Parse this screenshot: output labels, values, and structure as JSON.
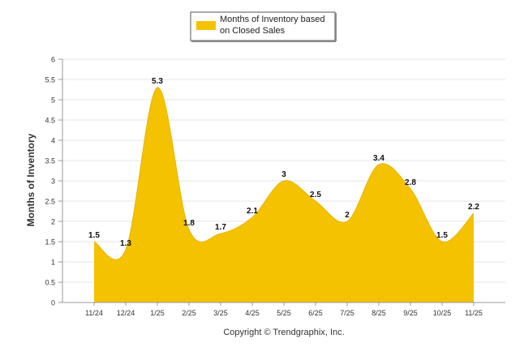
{
  "chart_data": {
    "type": "area",
    "categories": [
      "11/24",
      "12/24",
      "1/25",
      "2/25",
      "3/25",
      "4/25",
      "5/25",
      "6/25",
      "7/25",
      "8/25",
      "9/25",
      "10/25",
      "11/25"
    ],
    "series": [
      {
        "name": "Months of Inventory based on Closed Sales",
        "values": [
          1.5,
          1.3,
          5.3,
          1.8,
          1.7,
          2.1,
          3,
          2.5,
          2,
          3.4,
          2.8,
          1.5,
          2.2
        ],
        "labels": [
          "1.5",
          "1.3",
          "5.3",
          "1.8",
          "1.7",
          "2.1",
          "3",
          "2.5",
          "2",
          "3.4",
          "2.8",
          "1.5",
          "2.2"
        ]
      }
    ],
    "ylabel": "Months of Inventory",
    "xlabel": "",
    "ylim": [
      0,
      6
    ],
    "yticks": [
      "0",
      "0.5",
      "1",
      "1.5",
      "2",
      "2.5",
      "3",
      "3.5",
      "4",
      "4.5",
      "5",
      "5.5",
      "6"
    ],
    "grid": true,
    "legend_position": "top-center",
    "colors": {
      "fill": "#F5C200",
      "grid": "#e6e6e6",
      "axis": "#999999"
    }
  },
  "legend": {
    "line1": "Months of Inventory based",
    "line2": "on Closed Sales"
  },
  "footer": {
    "copyright": "Copyright © Trendgraphix, Inc."
  }
}
